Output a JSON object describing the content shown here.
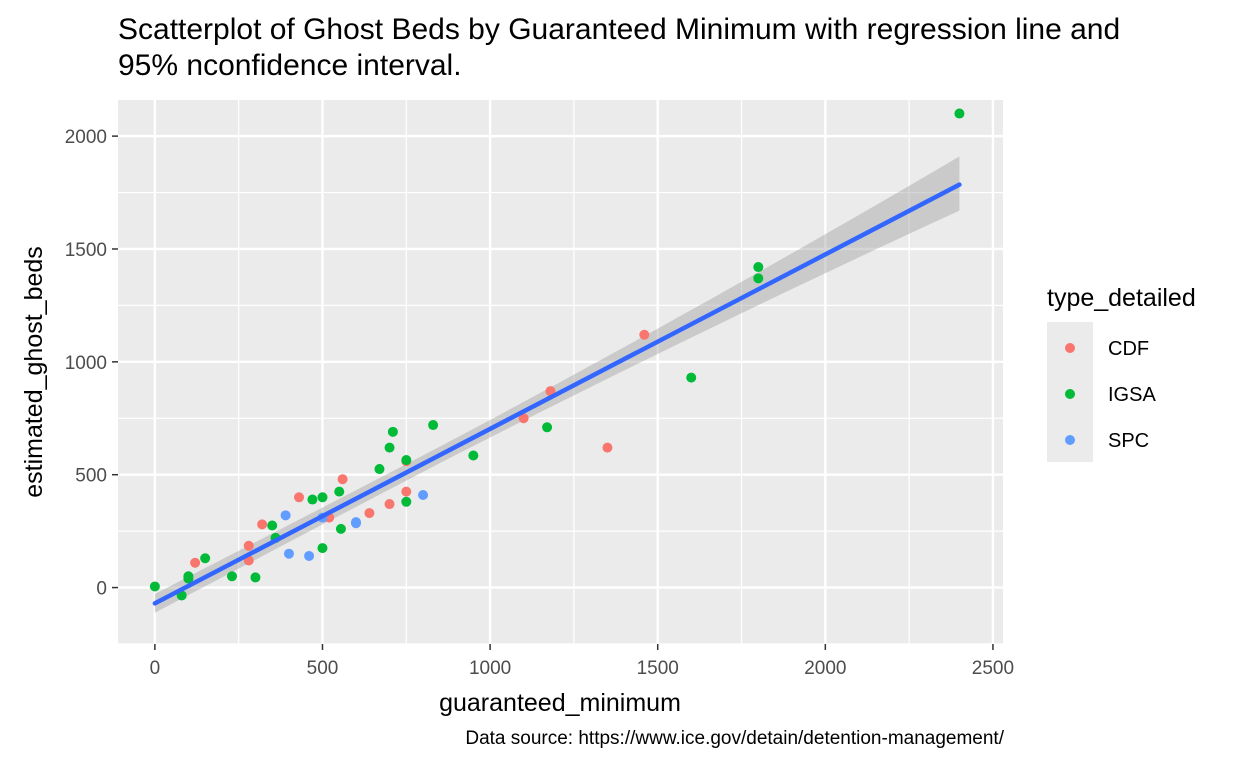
{
  "chart_data": {
    "type": "scatter",
    "title": "Scatterplot of Ghost Beds by Guaranteed Minimum with regression line and 95% nconfidence interval.",
    "caption": "Data source: https://www.ice.gov/detain/detention-management/",
    "xlabel": "guaranteed_minimum",
    "ylabel": "estimated_ghost_beds",
    "xlim": [
      -110,
      2530
    ],
    "ylim": [
      -250,
      2160
    ],
    "xticks": [
      0,
      500,
      1000,
      1500,
      2000,
      2500
    ],
    "yticks": [
      0,
      500,
      1000,
      1500,
      2000
    ],
    "grid": true,
    "legend_title": "type_detailed",
    "legend_position": "right",
    "series": [
      {
        "name": "CDF",
        "color": "#F8766D",
        "points": [
          [
            120,
            110
          ],
          [
            280,
            185
          ],
          [
            280,
            120
          ],
          [
            320,
            280
          ],
          [
            430,
            400
          ],
          [
            520,
            310
          ],
          [
            560,
            480
          ],
          [
            640,
            330
          ],
          [
            700,
            370
          ],
          [
            750,
            560
          ],
          [
            750,
            425
          ],
          [
            1100,
            750
          ],
          [
            1180,
            870
          ],
          [
            1350,
            620
          ],
          [
            1460,
            1120
          ]
        ]
      },
      {
        "name": "IGSA",
        "color": "#00BA38",
        "points": [
          [
            0,
            5
          ],
          [
            80,
            -35
          ],
          [
            100,
            50
          ],
          [
            100,
            40
          ],
          [
            150,
            130
          ],
          [
            230,
            50
          ],
          [
            300,
            45
          ],
          [
            350,
            275
          ],
          [
            360,
            220
          ],
          [
            470,
            390
          ],
          [
            500,
            400
          ],
          [
            500,
            175
          ],
          [
            550,
            425
          ],
          [
            555,
            260
          ],
          [
            670,
            525
          ],
          [
            700,
            620
          ],
          [
            710,
            690
          ],
          [
            750,
            565
          ],
          [
            750,
            380
          ],
          [
            830,
            720
          ],
          [
            950,
            585
          ],
          [
            1170,
            710
          ],
          [
            1600,
            930
          ],
          [
            1800,
            1420
          ],
          [
            1800,
            1370
          ],
          [
            2400,
            2100
          ]
        ]
      },
      {
        "name": "SPC",
        "color": "#619CFF",
        "points": [
          [
            390,
            320
          ],
          [
            400,
            150
          ],
          [
            460,
            140
          ],
          [
            500,
            310
          ],
          [
            600,
            290
          ],
          [
            600,
            285
          ],
          [
            800,
            410
          ]
        ]
      }
    ],
    "regression": {
      "x": [
        0,
        2400
      ],
      "y": [
        -70,
        1785
      ],
      "ci_lower": [
        -130,
        1670
      ],
      "ci_upper": [
        -10,
        1910
      ]
    }
  }
}
